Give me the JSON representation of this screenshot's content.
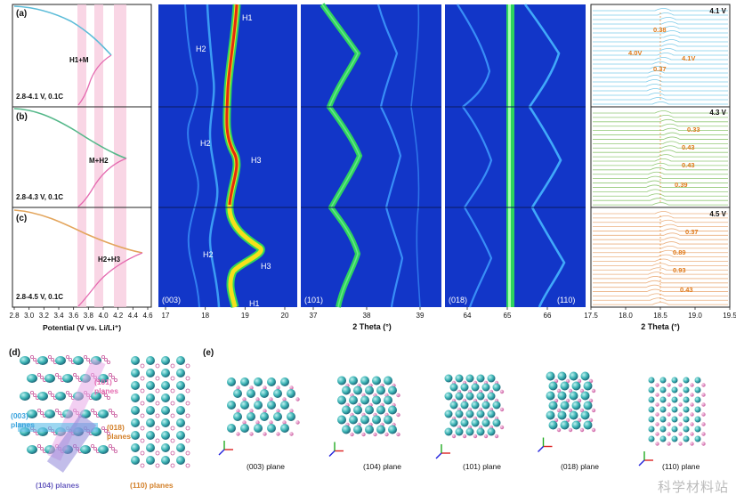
{
  "panel_a": {
    "letter": "(a)",
    "label": "2.8-4.1 V, 0.1C",
    "phase": "H1+M",
    "curve_color": "#5bbcd8"
  },
  "panel_b": {
    "letter": "(b)",
    "label": "2.8-4.3 V, 0.1C",
    "phase": "M+H2",
    "curve_color": "#55b88a"
  },
  "panel_c": {
    "letter": "(c)",
    "label": "2.8-4.5 V, 0.1C",
    "phase": "H2+H3",
    "curve_color": "#e3a55c"
  },
  "potential_axis": {
    "label": "Potential (V vs. Li/Li⁺)",
    "ticks": [
      "2.8",
      "3.0",
      "3.2",
      "3.4",
      "3.6",
      "3.8",
      "4.0",
      "4.2",
      "4.4",
      "4.6"
    ],
    "discharge_color": "#e56ab0",
    "band_color": "#f7c8dc"
  },
  "contour_maps": {
    "map_003": {
      "plane": "(003)",
      "ticks": [
        "17",
        "18",
        "19",
        "20"
      ],
      "labels": {
        "h1_top": "H1",
        "h2_a": "H2",
        "h2_b": "H2",
        "h3_b": "H3",
        "h2_c": "H2",
        "h3_c": "H3",
        "h1_bottom": "H1"
      }
    },
    "map_101": {
      "plane": "(101)",
      "ticks": [
        "37",
        "38",
        "39"
      ],
      "xlabel": "2 Theta (°)"
    },
    "map_018": {
      "plane": "(018)",
      "plane2": "(110)",
      "ticks": [
        "64",
        "65",
        "66"
      ]
    },
    "background": "#1236c8",
    "line_color": "#3f9dff",
    "peak_color": "#2ed45e"
  },
  "stacked_panels": {
    "xlabel": "2 Theta (°)",
    "ticks": [
      "17.5",
      "18.0",
      "18.5",
      "19.0",
      "19.5"
    ],
    "voltages": [
      "4.1 V",
      "4.3 V",
      "4.5 V"
    ],
    "colors": [
      "#66c2e5",
      "#7fbf5f",
      "#e7a36b"
    ],
    "annot_color": "#e07a1a",
    "annotations_top": [
      "0.38",
      "4.0V",
      "4.1V",
      "0.37"
    ],
    "annotations_mid": [
      "0.33",
      "0.43",
      "0.43",
      "0.39"
    ],
    "annotations_bot": [
      "0.37",
      "0.89",
      "0.93",
      "0.43"
    ]
  },
  "panel_d": {
    "letter": "(d)",
    "labels": {
      "p101": "(101)",
      "p101b": "planes",
      "p003": "(003)",
      "p003b": "planes",
      "p018": "(018)",
      "p018b": "planes",
      "p104": "(104) planes",
      "p110": "(110) planes"
    }
  },
  "panel_e": {
    "letter": "(e)",
    "planes": [
      "(003) plane",
      "(104) plane",
      "(101) plane",
      "(018) plane",
      "(110) plane"
    ]
  },
  "watermark": "科学材料站"
}
